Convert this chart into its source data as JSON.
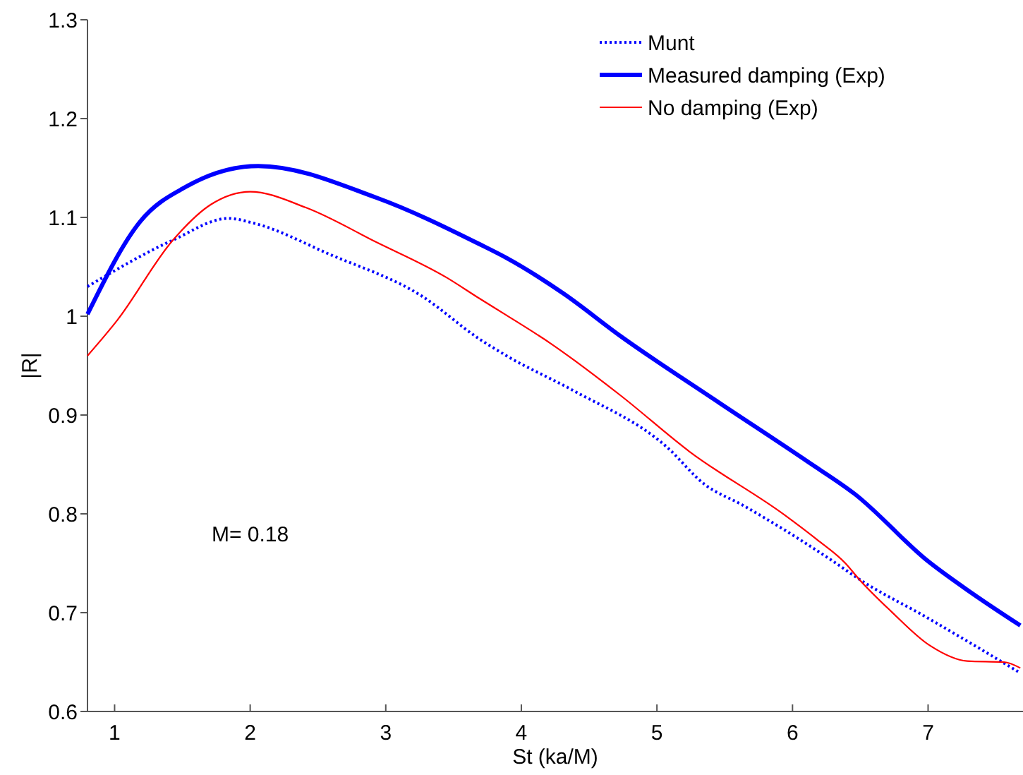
{
  "chart_data": {
    "type": "line",
    "xlabel": "St (ka/M)",
    "ylabel": "|R|",
    "xlim": [
      0.8,
      7.7
    ],
    "ylim": [
      0.6,
      1.3
    ],
    "xticks": [
      1,
      2,
      3,
      4,
      5,
      6,
      7
    ],
    "yticks": [
      0.6,
      0.7,
      0.8,
      0.9,
      1,
      1.1,
      1.2,
      1.3
    ],
    "grid": false,
    "legend": "top right",
    "annotations": [
      "M= 0.18"
    ],
    "series": [
      {
        "name": "Munt",
        "color": "#0000ff",
        "line_style": "dotted",
        "x": [
          0.8,
          1.43,
          1.84,
          2.03,
          2.58,
          3.27,
          3.69,
          3.89,
          4.38,
          5.07,
          5.35,
          5.63,
          6.31,
          6.49,
          6.98,
          7.68
        ],
        "values": [
          1.03,
          1.077,
          1.099,
          1.094,
          1.063,
          1.02,
          0.977,
          0.96,
          0.925,
          0.868,
          0.83,
          0.809,
          0.751,
          0.734,
          0.696,
          0.639
        ]
      },
      {
        "name": "Measured damping (Exp)",
        "color": "#0000ff",
        "line_style": "solid",
        "x": [
          0.8,
          1.19,
          1.54,
          2.06,
          2.93,
          3.69,
          3.89,
          4.31,
          4.73,
          5.42,
          6.11,
          6.46,
          7.0,
          7.32,
          7.68
        ],
        "values": [
          1.002,
          1.096,
          1.132,
          1.152,
          1.12,
          1.073,
          1.059,
          1.023,
          0.98,
          0.916,
          0.853,
          0.82,
          0.752,
          0.72,
          0.687
        ]
      },
      {
        "name": "No damping (Exp)",
        "color": "#ff0000",
        "line_style": "solid",
        "x": [
          0.8,
          1.02,
          1.43,
          1.71,
          2.0,
          2.41,
          2.93,
          3.45,
          3.69,
          3.89,
          4.21,
          4.73,
          5.24,
          5.94,
          6.18,
          6.39,
          6.49,
          6.73,
          7.01,
          7.29,
          7.56,
          7.68
        ],
        "values": [
          0.96,
          0.996,
          1.077,
          1.113,
          1.126,
          1.11,
          1.075,
          1.039,
          1.018,
          1.001,
          0.973,
          0.92,
          0.863,
          0.799,
          0.774,
          0.75,
          0.734,
          0.701,
          0.667,
          0.651,
          0.65,
          0.644
        ]
      }
    ]
  }
}
